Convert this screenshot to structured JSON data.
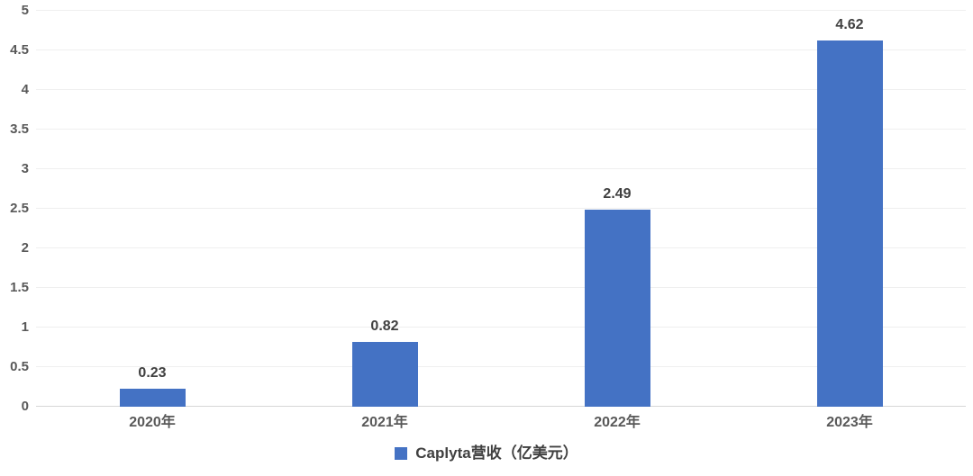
{
  "chart_data": {
    "type": "bar",
    "categories": [
      "2020年",
      "2021年",
      "2022年",
      "2023年"
    ],
    "values": [
      0.23,
      0.82,
      2.49,
      4.62
    ],
    "series": [
      {
        "name": "Caplyta营收（亿美元）",
        "values": [
          0.23,
          0.82,
          2.49,
          4.62
        ]
      }
    ],
    "value_labels": [
      "0.23",
      "0.82",
      "2.49",
      "4.62"
    ],
    "title": "",
    "xlabel": "",
    "ylabel": "",
    "ylim": [
      0,
      5
    ],
    "ytick_step": 0.5,
    "y_ticks": [
      "0",
      "0.5",
      "1",
      "1.5",
      "2",
      "2.5",
      "3",
      "3.5",
      "4",
      "4.5",
      "5"
    ],
    "grid": true,
    "legend_position": "bottom"
  },
  "legend": {
    "label": "Caplyta营收（亿美元）",
    "marker": "square"
  },
  "colors": {
    "bar": "#4472C4",
    "legend_marker": "#4472C4",
    "gridline": "#EFEFEF",
    "axis_line": "#D6D6D6",
    "tick_label": "#595959",
    "data_label": "#404040",
    "background": "#FFFFFF"
  }
}
